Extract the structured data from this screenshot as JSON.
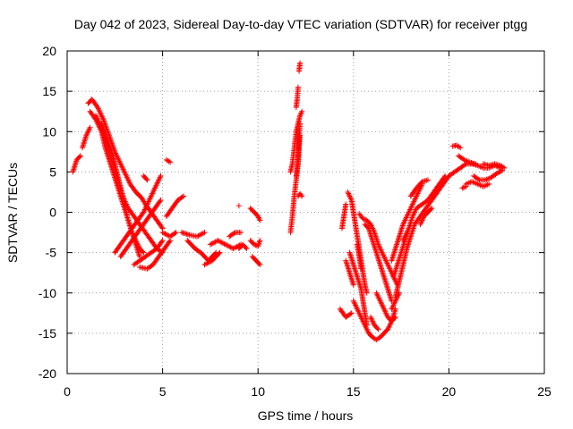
{
  "chart_data": {
    "type": "scatter",
    "title": "Day 042 of 2023, Sidereal Day-to-day VTEC variation (SDTVAR) for receiver ptgg",
    "xlabel": "GPS time / hours",
    "ylabel": "SDTVAR / TECUs",
    "xlim": [
      0,
      25
    ],
    "ylim": [
      -20,
      20
    ],
    "xticks": [
      0,
      5,
      10,
      15,
      20,
      25
    ],
    "yticks": [
      -20,
      -15,
      -10,
      -5,
      0,
      5,
      10,
      15,
      20
    ],
    "grid": true,
    "marker": "plus",
    "color": "#ff0000",
    "tracks": [
      [
        [
          0.3,
          5
        ],
        [
          0.5,
          6.5
        ],
        [
          0.7,
          7
        ]
      ],
      [
        [
          0.8,
          8
        ],
        [
          1.0,
          9.5
        ],
        [
          1.2,
          10.5
        ]
      ],
      [
        [
          1.1,
          13.5
        ],
        [
          1.3,
          14
        ],
        [
          1.6,
          13
        ],
        [
          1.9,
          11.5
        ],
        [
          2.2,
          9.5
        ],
        [
          2.5,
          7.5
        ],
        [
          2.8,
          6
        ],
        [
          3.0,
          5
        ],
        [
          3.3,
          3.5
        ],
        [
          3.6,
          2.5
        ],
        [
          3.9,
          1.8
        ],
        [
          4.1,
          1
        ],
        [
          4.4,
          0
        ],
        [
          4.7,
          -1
        ],
        [
          5.0,
          -2
        ]
      ],
      [
        [
          1.2,
          12.5
        ],
        [
          1.5,
          11.5
        ],
        [
          1.8,
          10
        ],
        [
          2.0,
          8
        ],
        [
          2.2,
          6.5
        ],
        [
          2.4,
          5
        ],
        [
          2.6,
          3.5
        ],
        [
          2.8,
          2
        ],
        [
          3.0,
          0.5
        ],
        [
          3.2,
          -1
        ],
        [
          3.4,
          -2.5
        ],
        [
          3.6,
          -3.5
        ],
        [
          3.8,
          -4.5
        ],
        [
          4.0,
          -5
        ]
      ],
      [
        [
          1.5,
          12
        ],
        [
          1.8,
          10.5
        ],
        [
          2.0,
          9
        ],
        [
          2.2,
          7.5
        ],
        [
          2.4,
          6
        ],
        [
          2.6,
          4.5
        ],
        [
          2.8,
          3
        ],
        [
          3.0,
          1.5
        ],
        [
          3.2,
          0.5
        ],
        [
          3.5,
          -0.5
        ],
        [
          3.8,
          -1.5
        ],
        [
          4.1,
          -2.5
        ],
        [
          4.4,
          -3.5
        ],
        [
          4.7,
          -4.5
        ],
        [
          5.0,
          -5
        ]
      ],
      [
        [
          1.8,
          11
        ],
        [
          2.1,
          9
        ],
        [
          2.4,
          7
        ],
        [
          2.6,
          5
        ],
        [
          2.8,
          3
        ],
        [
          3.0,
          1
        ],
        [
          3.2,
          -1
        ],
        [
          3.4,
          -2.5
        ],
        [
          3.6,
          -4
        ],
        [
          3.8,
          -5.5
        ]
      ],
      [
        [
          2.5,
          -5
        ],
        [
          2.8,
          -4
        ],
        [
          3.1,
          -3
        ],
        [
          3.4,
          -2
        ],
        [
          3.7,
          -1
        ],
        [
          4.0,
          0
        ],
        [
          4.3,
          1.5
        ],
        [
          4.6,
          3
        ],
        [
          4.9,
          4.5
        ]
      ],
      [
        [
          2.8,
          -5.5
        ],
        [
          3.1,
          -4.5
        ],
        [
          3.4,
          -3.5
        ],
        [
          3.7,
          -2.5
        ],
        [
          4.0,
          -1.5
        ],
        [
          4.3,
          -0.5
        ],
        [
          4.6,
          0.5
        ],
        [
          4.9,
          1.5
        ]
      ],
      [
        [
          3.5,
          -6.5
        ],
        [
          3.8,
          -6
        ],
        [
          4.1,
          -5.5
        ],
        [
          4.4,
          -5
        ],
        [
          4.7,
          -4.5
        ],
        [
          5.0,
          -3.5
        ]
      ],
      [
        [
          3.8,
          -6.8
        ],
        [
          4.2,
          -7
        ],
        [
          4.5,
          -6.5
        ],
        [
          4.8,
          -5.5
        ],
        [
          5.1,
          -4.5
        ],
        [
          5.4,
          -3.5
        ]
      ],
      [
        [
          4.0,
          4.5
        ],
        [
          4.2,
          4
        ]
      ],
      [
        [
          5.2,
          6.5
        ],
        [
          5.4,
          6.2
        ]
      ],
      [
        [
          5.2,
          -0.5
        ],
        [
          5.5,
          0.5
        ],
        [
          5.8,
          1.5
        ],
        [
          6.1,
          2
        ]
      ],
      [
        [
          5.0,
          -2.5
        ],
        [
          5.4,
          -3
        ],
        [
          5.7,
          -2.5
        ]
      ],
      [
        [
          6.0,
          -2.5
        ],
        [
          6.4,
          -2.8
        ],
        [
          6.8,
          -3
        ],
        [
          7.2,
          -2.5
        ]
      ],
      [
        [
          6.3,
          -3.5
        ],
        [
          6.7,
          -4.5
        ],
        [
          7.0,
          -5
        ],
        [
          7.4,
          -6
        ],
        [
          7.8,
          -5
        ]
      ],
      [
        [
          7.2,
          -6.5
        ],
        [
          7.6,
          -6
        ],
        [
          8.0,
          -5
        ]
      ],
      [
        [
          7.5,
          -4
        ],
        [
          7.9,
          -3.5
        ],
        [
          8.3,
          -4
        ],
        [
          8.7,
          -4.5
        ],
        [
          9.1,
          -4
        ]
      ],
      [
        [
          8.5,
          -3
        ],
        [
          8.8,
          -2.5
        ],
        [
          9.1,
          -2.5
        ]
      ],
      [
        [
          9.0,
          -4.5
        ],
        [
          9.2,
          -4
        ],
        [
          9.4,
          -4.5
        ]
      ],
      [
        [
          9.0,
          0.8
        ]
      ],
      [
        [
          9.6,
          -3.5
        ],
        [
          9.8,
          -4
        ],
        [
          10.0,
          -4.2
        ],
        [
          10.1,
          -3.5
        ]
      ],
      [
        [
          9.6,
          0.5
        ],
        [
          9.8,
          0
        ],
        [
          10.0,
          -0.5
        ],
        [
          10.1,
          -1
        ]
      ],
      [
        [
          9.7,
          -5.5
        ],
        [
          9.9,
          -6
        ],
        [
          10.1,
          -6.5
        ]
      ],
      [
        [
          11.7,
          -2.5
        ],
        [
          11.8,
          -0.5
        ],
        [
          11.9,
          2
        ],
        [
          12.0,
          4
        ],
        [
          12.1,
          6
        ],
        [
          12.15,
          8
        ],
        [
          12.2,
          9.5
        ]
      ],
      [
        [
          11.7,
          5
        ],
        [
          11.8,
          6
        ],
        [
          11.9,
          8
        ],
        [
          12.0,
          10
        ],
        [
          12.1,
          11
        ],
        [
          12.2,
          12
        ],
        [
          12.3,
          12.5
        ]
      ],
      [
        [
          12.0,
          4.5
        ],
        [
          12.1,
          6.5
        ],
        [
          12.15,
          9
        ],
        [
          12.2,
          11
        ]
      ],
      [
        [
          12.0,
          13
        ],
        [
          12.05,
          14
        ],
        [
          12.1,
          15.5
        ]
      ],
      [
        [
          12.15,
          17.5
        ],
        [
          12.2,
          18.5
        ]
      ],
      [
        [
          12.1,
          2
        ],
        [
          12.2,
          2.3
        ],
        [
          12.3,
          2
        ]
      ],
      [
        [
          14.4,
          -2
        ],
        [
          14.5,
          -0.5
        ],
        [
          14.6,
          1
        ]
      ],
      [
        [
          14.7,
          2.5
        ],
        [
          14.9,
          1.5
        ],
        [
          15.0,
          0
        ],
        [
          15.1,
          -1.5
        ],
        [
          15.2,
          -3
        ],
        [
          15.3,
          -4.5
        ],
        [
          15.4,
          -6
        ],
        [
          15.5,
          -7.5
        ],
        [
          15.6,
          -9
        ],
        [
          15.7,
          -10
        ]
      ],
      [
        [
          14.8,
          -5
        ],
        [
          15.0,
          -6.5
        ],
        [
          15.2,
          -8
        ],
        [
          15.4,
          -9.5
        ],
        [
          15.5,
          -11
        ],
        [
          15.6,
          -12.5
        ],
        [
          15.7,
          -14
        ]
      ],
      [
        [
          15.0,
          -11
        ],
        [
          15.2,
          -12
        ],
        [
          15.4,
          -13
        ],
        [
          15.6,
          -14
        ],
        [
          15.8,
          -15
        ],
        [
          16.0,
          -15.5
        ],
        [
          16.2,
          -15.8
        ],
        [
          16.4,
          -15.5
        ],
        [
          16.6,
          -15
        ],
        [
          16.8,
          -14.5
        ],
        [
          17.0,
          -13.5
        ],
        [
          17.2,
          -12
        ]
      ],
      [
        [
          14.3,
          -12
        ],
        [
          14.6,
          -13
        ],
        [
          14.9,
          -12.5
        ]
      ],
      [
        [
          15.2,
          -4
        ],
        [
          15.3,
          -5.5
        ],
        [
          15.4,
          -7
        ]
      ],
      [
        [
          15.3,
          -0.2
        ],
        [
          15.5,
          -0.8
        ],
        [
          15.7,
          -1
        ],
        [
          15.9,
          -1.5
        ],
        [
          16.1,
          -2.5
        ],
        [
          16.3,
          -4
        ],
        [
          16.5,
          -5
        ],
        [
          16.7,
          -6
        ],
        [
          16.9,
          -7
        ],
        [
          17.1,
          -8
        ],
        [
          17.3,
          -9
        ]
      ],
      [
        [
          15.6,
          -1.5
        ],
        [
          15.8,
          -2
        ],
        [
          16.0,
          -3.5
        ],
        [
          16.2,
          -5
        ],
        [
          16.4,
          -6.5
        ],
        [
          16.6,
          -8
        ],
        [
          16.8,
          -9.5
        ],
        [
          17.0,
          -11
        ]
      ],
      [
        [
          16.2,
          -10
        ],
        [
          16.5,
          -11.5
        ],
        [
          16.8,
          -13
        ],
        [
          17.0,
          -13.5
        ],
        [
          17.2,
          -13
        ]
      ],
      [
        [
          17.0,
          -6
        ],
        [
          17.2,
          -4.5
        ],
        [
          17.4,
          -3
        ],
        [
          17.6,
          -1.5
        ],
        [
          17.8,
          -0.5
        ],
        [
          18.0,
          0.5
        ],
        [
          18.2,
          1.5
        ],
        [
          18.4,
          2.5
        ],
        [
          18.6,
          3.5
        ]
      ],
      [
        [
          17.1,
          -8
        ],
        [
          17.3,
          -6.5
        ],
        [
          17.5,
          -5
        ],
        [
          17.7,
          -3.5
        ],
        [
          17.9,
          -2
        ],
        [
          18.1,
          -0.5
        ],
        [
          18.3,
          0.5
        ],
        [
          18.6,
          1
        ],
        [
          18.9,
          1.5
        ],
        [
          19.2,
          2.5
        ],
        [
          19.5,
          3.5
        ],
        [
          19.8,
          4.5
        ]
      ],
      [
        [
          17.2,
          -10.5
        ],
        [
          17.4,
          -8.5
        ],
        [
          17.6,
          -6.5
        ],
        [
          17.8,
          -4.5
        ],
        [
          18.0,
          -3
        ],
        [
          18.2,
          -1.5
        ],
        [
          18.5,
          -0.5
        ],
        [
          18.8,
          0.5
        ],
        [
          19.1,
          1.5
        ],
        [
          19.4,
          2.5
        ],
        [
          19.7,
          3.5
        ],
        [
          20.0,
          4.5
        ]
      ],
      [
        [
          17.0,
          -12
        ],
        [
          17.2,
          -11
        ],
        [
          17.4,
          -10
        ]
      ],
      [
        [
          18.5,
          -1.5
        ],
        [
          18.7,
          -0.5
        ],
        [
          18.9,
          0
        ],
        [
          19.1,
          0.5
        ]
      ],
      [
        [
          17.6,
          -3.5
        ],
        [
          17.8,
          -2.5
        ],
        [
          18.0,
          -1.5
        ]
      ],
      [
        [
          20.0,
          4.5
        ],
        [
          20.3,
          5
        ],
        [
          20.6,
          5.5
        ],
        [
          20.9,
          6
        ],
        [
          21.2,
          6
        ],
        [
          21.5,
          5.8
        ],
        [
          21.8,
          5.5
        ],
        [
          22.1,
          5.5
        ],
        [
          22.4,
          5.8
        ],
        [
          22.7,
          5.5
        ]
      ],
      [
        [
          20.2,
          8.2
        ],
        [
          20.4,
          8.3
        ],
        [
          20.6,
          8
        ]
      ],
      [
        [
          20.5,
          7
        ],
        [
          20.8,
          6.5
        ],
        [
          21.1,
          6.2
        ],
        [
          21.4,
          6
        ]
      ],
      [
        [
          21.3,
          4.5
        ],
        [
          21.6,
          4
        ],
        [
          21.9,
          4
        ],
        [
          22.2,
          4.3
        ],
        [
          22.5,
          4.8
        ],
        [
          22.8,
          5.2
        ]
      ],
      [
        [
          20.9,
          3.5
        ],
        [
          21.2,
          3.8
        ],
        [
          21.5,
          3.5
        ],
        [
          21.8,
          3.2
        ],
        [
          22.1,
          3.5
        ]
      ],
      [
        [
          20.7,
          3
        ],
        [
          20.9,
          3.2
        ]
      ],
      [
        [
          21.8,
          6
        ],
        [
          22.1,
          5.8
        ],
        [
          22.4,
          6
        ],
        [
          22.7,
          5.8
        ],
        [
          22.9,
          5.5
        ]
      ],
      [
        [
          14.6,
          -6
        ],
        [
          14.8,
          -7.5
        ],
        [
          15.0,
          -9
        ]
      ],
      [
        [
          15.9,
          -13
        ],
        [
          16.1,
          -14
        ],
        [
          16.3,
          -14.5
        ]
      ],
      [
        [
          18.0,
          2
        ],
        [
          18.3,
          3
        ],
        [
          18.6,
          3.8
        ],
        [
          18.9,
          4
        ]
      ]
    ]
  }
}
